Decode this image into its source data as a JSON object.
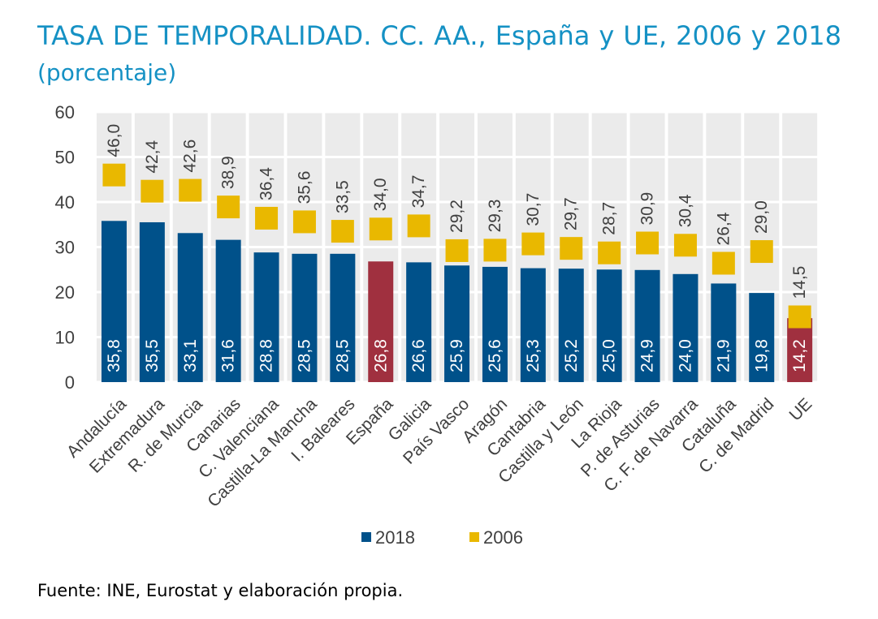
{
  "title": "TASA DE TEMPORALIDAD. CC. AA., España y UE, 2006 y 2018",
  "subtitle": "(porcentaje)",
  "source": "Fuente: INE, Eurostat y elaboración propia.",
  "colors": {
    "bar_2018": "#00518a",
    "bar_highlight": "#a0303f",
    "marker_2006": "#e9b800",
    "plot_band": "#ebebeb",
    "title": "#1591c4"
  },
  "chart_data": {
    "type": "bar",
    "categories": [
      "Andalucía",
      "Extremadura",
      "R. de Murcia",
      "Canarias",
      "C. Valenciana",
      "Castilla-La Mancha",
      "I. Baleares",
      "España",
      "Galicia",
      "País Vasco",
      "Aragón",
      "Cantabria",
      "Castilla y León",
      "La Rioja",
      "P. de Asturias",
      "C. F. de Navarra",
      "Cataluña",
      "C. de Madrid",
      "UE"
    ],
    "highlight": [
      "España",
      "UE"
    ],
    "series": [
      {
        "name": "2018",
        "kind": "bar",
        "values": [
          35.8,
          35.5,
          33.1,
          31.6,
          28.8,
          28.5,
          28.5,
          26.8,
          26.6,
          25.9,
          25.6,
          25.3,
          25.2,
          25.0,
          24.9,
          24.0,
          21.9,
          19.8,
          14.2
        ],
        "labels": [
          "35,8",
          "35,5",
          "33,1",
          "31,6",
          "28,8",
          "28,5",
          "28,5",
          "26,8",
          "26,6",
          "25,9",
          "25,6",
          "25,3",
          "25,2",
          "25,0",
          "24,9",
          "24,0",
          "21,9",
          "19,8",
          "14,2"
        ]
      },
      {
        "name": "2006",
        "kind": "marker",
        "values": [
          46.0,
          42.4,
          42.6,
          38.9,
          36.4,
          35.6,
          33.5,
          34.0,
          34.7,
          29.2,
          29.3,
          30.7,
          29.7,
          28.7,
          30.9,
          30.4,
          26.4,
          29.0,
          14.5
        ],
        "labels": [
          "46,0",
          "42,4",
          "42,6",
          "38,9",
          "36,4",
          "35,6",
          "33,5",
          "34,0",
          "34,7",
          "29,2",
          "29,3",
          "30,7",
          "29,7",
          "28,7",
          "30,9",
          "30,4",
          "26,4",
          "29,0",
          "14,5"
        ]
      }
    ],
    "yticks": [
      "0",
      "10",
      "20",
      "30",
      "40",
      "50",
      "60"
    ],
    "ylim": [
      0,
      60
    ],
    "xlabel": "",
    "ylabel": "",
    "legend": {
      "position": "bottom",
      "items": [
        "2018",
        "2006"
      ]
    },
    "grid": true
  }
}
